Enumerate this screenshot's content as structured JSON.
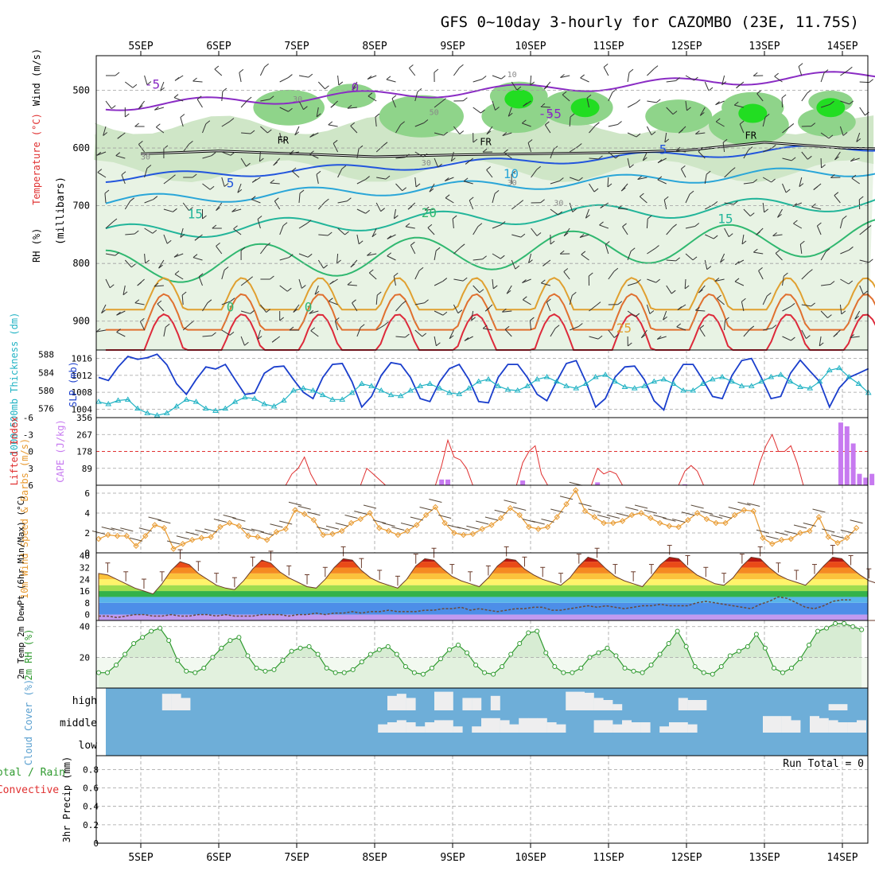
{
  "title": "GFS 0~10day 3-hourly for CAZOMBO (23E, 11.75S)",
  "dates": [
    "5SEP",
    "6SEP",
    "7SEP",
    "8SEP",
    "9SEP",
    "10SEP",
    "11SEP",
    "12SEP",
    "13SEP",
    "14SEP"
  ],
  "chart_data": [
    {
      "type": "contour",
      "panel": "upper-air",
      "ylabel_parts": [
        "RH (%)",
        "Temperature (°C)",
        "Wind (m/s)",
        "(millibars)"
      ],
      "yticks": [
        "500",
        "600",
        "700",
        "800",
        "900"
      ],
      "ylim": [
        1050,
        440
      ],
      "temperature_contour_labels": [
        "-5",
        "-5",
        "0",
        "-5",
        "FR",
        "FR",
        "FR",
        "5",
        "5",
        "10",
        "15",
        "15",
        "20",
        "0",
        "0",
        "25"
      ],
      "rh_contour_labels": [
        "10",
        "30",
        "50",
        "30",
        "30",
        "30",
        "30"
      ],
      "freezing_level_hpa": [
        610,
        605,
        610,
        615,
        612,
        610,
        608,
        604,
        590,
        600,
        602
      ],
      "freezing_level_x_days": [
        0,
        1,
        2,
        3,
        4,
        5,
        6,
        7,
        8,
        9,
        9.8
      ],
      "temperature_levels_c": [
        -5,
        0,
        5,
        10,
        15,
        20,
        25
      ]
    },
    {
      "type": "line",
      "panel": "pressure",
      "ylabel_left": "1000-500mb Thickness (dm)",
      "ylabel_right": "SLP (mb)",
      "yticks_left": [
        "588",
        "584",
        "580",
        "576"
      ],
      "yticks_right": [
        "1016",
        "1012",
        "1008",
        "1004"
      ],
      "ylim_slp": [
        1002,
        1018
      ],
      "x_hours_step": 3,
      "series": [
        {
          "name": "SLP (mb)",
          "color": "#1a3ecc",
          "values": [
            1011.5,
            1010.8,
            1014.0,
            1016.5,
            1015.8,
            1016.2,
            1017.0,
            1014.5,
            1010.0,
            1007.5,
            1011.0,
            1014.0,
            1013.5,
            1014.6,
            1011.0,
            1007.5,
            1007.8,
            1012.5,
            1014.0,
            1014.2,
            1011.0,
            1008.0,
            1006.5,
            1011.5,
            1014.6,
            1014.8,
            1010.5,
            1004.5,
            1007.0,
            1012.0,
            1015.0,
            1014.6,
            1011.5,
            1006.5,
            1005.8,
            1010.5,
            1013.6,
            1014.6,
            1011.0,
            1005.8,
            1005.5,
            1011.5,
            1014.6,
            1014.6,
            1011.5,
            1007.5,
            1006.0,
            1010.6,
            1014.8,
            1015.5,
            1010.5,
            1004.5,
            1006.5,
            1011.6,
            1014.0,
            1014.2,
            1011.0,
            1006.0,
            1003.8,
            1011.0,
            1014.6,
            1014.6,
            1011.0,
            1007.0,
            1006.5,
            1012.0,
            1015.5,
            1016.0,
            1011.5,
            1006.5,
            1007.0,
            1012.5,
            1015.6,
            1013.0,
            1010.5,
            1004.5,
            1009.0,
            1011.5,
            1012.5,
            1013.6
          ]
        },
        {
          "name": "1000-500mb Thickness (dm)",
          "color": "#22b3c4",
          "values": [
            577.5,
            577.0,
            577.8,
            578.0,
            576.0,
            575.0,
            574.5,
            575.0,
            576.5,
            578.0,
            577.5,
            576.0,
            575.5,
            576.0,
            577.5,
            578.5,
            578.2,
            577.0,
            576.5,
            577.8,
            580.0,
            580.5,
            580.0,
            579.0,
            578.0,
            578.0,
            579.5,
            581.5,
            581.0,
            580.0,
            579.0,
            578.8,
            580.0,
            581.0,
            581.5,
            580.5,
            579.5,
            579.2,
            580.5,
            582.0,
            582.5,
            581.0,
            580.2,
            580.0,
            581.0,
            582.5,
            583.0,
            582.0,
            581.0,
            580.5,
            581.5,
            583.0,
            583.5,
            582.0,
            580.8,
            580.5,
            581.0,
            582.0,
            582.5,
            581.5,
            580.0,
            580.0,
            581.5,
            582.5,
            583.0,
            582.0,
            581.0,
            581.0,
            582.0,
            583.0,
            583.5,
            582.0,
            580.8,
            580.5,
            582.0,
            584.5,
            585.0,
            583.0,
            581.5,
            579.5
          ]
        }
      ]
    },
    {
      "type": "bar+line",
      "panel": "convection",
      "ylabel_left": "Lifted Index",
      "ylabel_right": "CAPE (J/kg)",
      "yticks_left": [
        "-6",
        "-3",
        "0",
        "3",
        "6"
      ],
      "yticks_right": [
        "356",
        "267",
        "178",
        "89"
      ],
      "ylim_li": [
        -6,
        6
      ],
      "ylim_cape": [
        0,
        356
      ],
      "series": [
        {
          "name": "Lifted Index",
          "color": "#e03030",
          "values": [
            9,
            9,
            9,
            9,
            9,
            9,
            9,
            9,
            9,
            9,
            6,
            6,
            9,
            9,
            9,
            9,
            9,
            9,
            9,
            9,
            6,
            6,
            9,
            9,
            9,
            9,
            9,
            9,
            9,
            9,
            6,
            4,
            3,
            1,
            4,
            6,
            9,
            9,
            9,
            9,
            9,
            9,
            6,
            3,
            4,
            5,
            6,
            9,
            9,
            9,
            9,
            9,
            9,
            9,
            6,
            2.5,
            -2,
            1,
            1.5,
            3,
            6,
            9,
            9,
            9,
            9,
            9,
            9,
            6,
            2,
            0,
            -1,
            4,
            6,
            9,
            9,
            9,
            9,
            9,
            9,
            6,
            3,
            4,
            3.5,
            4,
            6,
            9,
            9,
            9,
            9,
            9,
            9,
            9,
            9,
            6,
            3.5,
            2.5,
            3.5,
            6,
            6,
            9,
            9,
            9,
            9,
            9,
            9,
            6,
            2,
            -1,
            -3,
            0,
            0,
            -1,
            2,
            6
          ]
        },
        {
          "name": "CAPE (J/kg)",
          "color": "#c77af0",
          "values": [
            0,
            0,
            0,
            0,
            0,
            0,
            0,
            0,
            0,
            0,
            0,
            0,
            0,
            0,
            0,
            0,
            0,
            0,
            0,
            0,
            0,
            0,
            0,
            0,
            0,
            0,
            0,
            0,
            0,
            0,
            0,
            0,
            0,
            0,
            0,
            0,
            0,
            0,
            0,
            0,
            0,
            0,
            0,
            0,
            0,
            0,
            0,
            0,
            0,
            0,
            0,
            0,
            0,
            0,
            0,
            30,
            30,
            0,
            0,
            0,
            0,
            0,
            0,
            0,
            0,
            0,
            0,
            0,
            25,
            0,
            0,
            0,
            0,
            0,
            0,
            0,
            0,
            0,
            0,
            0,
            15,
            0,
            0,
            0,
            0,
            0,
            0,
            0,
            0,
            0,
            0,
            0,
            0,
            0,
            5,
            0,
            0,
            0,
            0,
            0,
            0,
            0,
            0,
            0,
            0,
            0,
            0,
            0,
            0,
            0,
            0,
            0,
            0,
            0,
            0,
            0,
            0,
            0,
            0,
            330,
            310,
            220,
            60,
            40,
            60
          ]
        }
      ]
    },
    {
      "type": "line",
      "panel": "wind10m",
      "ylabel": "10m Wind Speed & Barbs (m/s)",
      "yticks": [
        "6",
        "4",
        "2",
        "0"
      ],
      "ylim": [
        0,
        6.8
      ],
      "series": [
        {
          "name": "10m Wind Speed (m/s)",
          "color": "#e89a30",
          "values": [
            1.4,
            1.8,
            1.7,
            1.7,
            0.7,
            1.7,
            2.8,
            2.5,
            0.4,
            0.9,
            1.3,
            1.5,
            1.6,
            2.6,
            3.0,
            2.7,
            1.7,
            1.6,
            1.3,
            2.1,
            2.4,
            4.3,
            3.9,
            3.3,
            1.8,
            1.9,
            2.2,
            3.0,
            3.4,
            4.0,
            2.5,
            2.2,
            1.8,
            2.2,
            2.8,
            3.8,
            4.6,
            3.0,
            2.0,
            1.8,
            1.9,
            2.4,
            2.8,
            3.5,
            4.5,
            3.8,
            2.6,
            2.4,
            2.6,
            3.6,
            4.9,
            6.3,
            4.2,
            3.6,
            3.0,
            3.0,
            3.2,
            3.8,
            4.0,
            3.5,
            3.0,
            2.7,
            2.6,
            3.3,
            4.0,
            3.4,
            3.0,
            3.0,
            3.8,
            4.3,
            4.2,
            1.5,
            0.9,
            1.3,
            1.4,
            2.0,
            2.2,
            3.6,
            1.6,
            1.0,
            1.5,
            2.5
          ]
        }
      ]
    },
    {
      "type": "area",
      "panel": "temperature",
      "ylabel": "2m Temp 2m DewPt (6hr Min/Max) (°C)",
      "yticks": [
        "40",
        "32",
        "24",
        "16",
        "8",
        "0"
      ],
      "ylim": [
        -4,
        42
      ],
      "series": [
        {
          "name": "2m Temp (°C)",
          "values": [
            28,
            27,
            24,
            21,
            18,
            16,
            14,
            21,
            30,
            36,
            34,
            28,
            24,
            20,
            18,
            17,
            23,
            31,
            37,
            35,
            29,
            25,
            22,
            19,
            18,
            24,
            32,
            38,
            37,
            30,
            25,
            22,
            20,
            18,
            24,
            33,
            38,
            37,
            31,
            26,
            23,
            21,
            19,
            25,
            33,
            38,
            37,
            31,
            27,
            24,
            22,
            20,
            25,
            33,
            39,
            37,
            31,
            26,
            23,
            21,
            19,
            26,
            34,
            39,
            38,
            32,
            27,
            24,
            21,
            20,
            25,
            33,
            39,
            38,
            32,
            27,
            24,
            22,
            20,
            26,
            33,
            39,
            38,
            32,
            27,
            23,
            21,
            20,
            26
          ]
        },
        {
          "name": "2m DewPt (°C)",
          "color": "#6a4a3a",
          "values": [
            -1,
            -1,
            -2,
            -1,
            0,
            0,
            -1,
            -1,
            0,
            -1,
            -1,
            0,
            0,
            -1,
            0,
            -1,
            -1,
            -1,
            0,
            0,
            0,
            -1,
            0,
            0,
            1,
            0,
            1,
            1,
            2,
            1,
            2,
            2,
            3,
            2,
            2,
            2,
            3,
            3,
            4,
            4,
            5,
            3,
            4,
            3,
            2,
            3,
            4,
            4,
            5,
            5,
            3,
            3,
            4,
            5,
            6,
            5,
            6,
            5,
            4,
            5,
            6,
            6,
            7,
            6,
            6,
            6,
            8,
            9,
            8,
            7,
            6,
            5,
            4,
            7,
            9,
            12,
            11,
            8,
            5,
            4,
            6,
            9,
            10,
            10
          ]
        }
      ]
    },
    {
      "type": "area",
      "panel": "rh2m",
      "ylabel": "2m RH (%)",
      "yticks": [
        "40",
        "20"
      ],
      "ylim": [
        0,
        44
      ],
      "series": [
        {
          "name": "2m RH (%)",
          "color": "#2f9a2f",
          "values": [
            10,
            10,
            15,
            22,
            29,
            33,
            37,
            39,
            31,
            18,
            11,
            10,
            13,
            20,
            26,
            31,
            33,
            21,
            13,
            11,
            12,
            18,
            24,
            26,
            27,
            22,
            13,
            10,
            10,
            12,
            17,
            22,
            25,
            27,
            22,
            14,
            10,
            9,
            13,
            19,
            25,
            28,
            23,
            15,
            10,
            9,
            14,
            22,
            29,
            36,
            37,
            23,
            14,
            10,
            10,
            13,
            20,
            23,
            26,
            21,
            13,
            11,
            10,
            15,
            22,
            29,
            37,
            27,
            14,
            10,
            9,
            14,
            21,
            24,
            27,
            35,
            26,
            13,
            10,
            13,
            19,
            28,
            37,
            39,
            42,
            42,
            40,
            38
          ]
        }
      ]
    },
    {
      "type": "heatmap",
      "panel": "clouds",
      "ylabel": "Cloud Cover (%)",
      "yticks": [
        "high",
        "middle",
        "low"
      ],
      "series": [
        {
          "name": "high",
          "values": [
            0,
            0,
            0,
            0,
            0,
            0,
            80,
            80,
            60,
            0,
            0,
            0,
            0,
            0,
            0,
            0,
            0,
            0,
            0,
            0,
            0,
            0,
            0,
            0,
            0,
            0,
            0,
            0,
            0,
            0,
            70,
            80,
            60,
            0,
            0,
            90,
            90,
            0,
            60,
            60,
            0,
            70,
            0,
            0,
            0,
            0,
            0,
            0,
            0,
            90,
            90,
            85,
            60,
            50,
            30,
            0,
            0,
            0,
            0,
            0,
            0,
            60,
            50,
            50,
            0,
            0,
            0,
            0,
            0,
            0,
            0,
            0,
            0,
            0,
            0,
            0,
            0,
            30,
            30,
            0,
            0,
            0,
            0
          ]
        },
        {
          "name": "middle",
          "values": [
            0,
            0,
            0,
            0,
            0,
            0,
            0,
            0,
            0,
            0,
            0,
            0,
            0,
            0,
            0,
            0,
            0,
            0,
            0,
            0,
            0,
            0,
            0,
            0,
            0,
            0,
            0,
            0,
            0,
            40,
            50,
            60,
            50,
            30,
            50,
            60,
            60,
            30,
            0,
            30,
            70,
            70,
            60,
            40,
            70,
            70,
            70,
            50,
            40,
            0,
            0,
            0,
            60,
            60,
            40,
            60,
            50,
            50,
            0,
            30,
            50,
            50,
            40,
            0,
            0,
            0,
            0,
            0,
            0,
            0,
            80,
            80,
            80,
            60,
            0,
            80,
            70,
            60,
            50,
            50,
            60,
            0
          ]
        },
        {
          "name": "low",
          "values": []
        }
      ]
    },
    {
      "type": "bar",
      "panel": "precip",
      "ylabel": "3hr Precip (mm)",
      "ylabel_left_legend": [
        "Total / Rain",
        "Convective"
      ],
      "yticks": [
        "0.8",
        "0.6",
        "0.4",
        "0.2",
        "0"
      ],
      "ylim": [
        0,
        0.95
      ],
      "annotation": "Run Total = 0",
      "values": []
    }
  ],
  "colors": {
    "frame": "#000000",
    "grid": "#a0a0a0",
    "cloud_blue": "#6eaed8",
    "cloud_white": "#eeeeef",
    "rh_fill": "#d7ecd3",
    "cape": "#c77af0",
    "li": "#e03030",
    "wind": "#e89a30"
  }
}
